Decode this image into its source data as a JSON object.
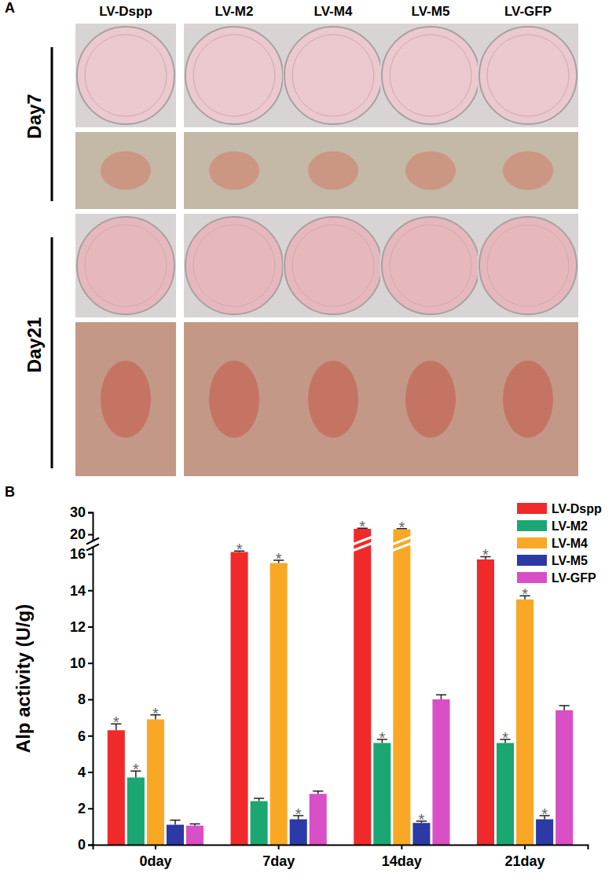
{
  "panel_a": {
    "label": "A",
    "columns": [
      "LV-Dspp",
      "LV-M2",
      "LV-M4",
      "LV-M5",
      "LV-GFP"
    ],
    "rows": [
      "Day7",
      "Day21"
    ]
  },
  "panel_b": {
    "label": "B"
  },
  "chart_data": {
    "type": "bar",
    "y_label": "Alp activity (U/g)",
    "categories": [
      "0day",
      "7day",
      "14day",
      "21day"
    ],
    "ylim": [
      0,
      30
    ],
    "yticks": [
      0,
      2,
      4,
      6,
      8,
      10,
      12,
      14,
      16,
      20,
      30
    ],
    "legend": "top-right",
    "series": [
      {
        "name": "LV-Dspp",
        "color": "#f02a2a",
        "values": [
          6.3,
          16.4,
          22.5,
          15.7
        ],
        "errors": [
          0.35,
          0.2,
          0.3,
          0.15
        ],
        "significance": [
          "*",
          "*",
          "*",
          "*"
        ]
      },
      {
        "name": "LV-M2",
        "color": "#1aa774",
        "values": [
          3.7,
          2.4,
          5.6,
          5.6
        ],
        "errors": [
          0.35,
          0.15,
          0.2,
          0.2
        ],
        "significance": [
          "*",
          null,
          "*",
          "*"
        ]
      },
      {
        "name": "LV-M4",
        "color": "#f9a825",
        "values": [
          6.9,
          15.5,
          22.3,
          13.5
        ],
        "errors": [
          0.25,
          0.15,
          0.3,
          0.2
        ],
        "significance": [
          "*",
          "*",
          "*",
          "*"
        ]
      },
      {
        "name": "LV-M5",
        "color": "#2b3aa6",
        "values": [
          1.1,
          1.4,
          1.2,
          1.4
        ],
        "errors": [
          0.25,
          0.2,
          0.1,
          0.2
        ],
        "significance": [
          null,
          "*",
          "*",
          "*"
        ]
      },
      {
        "name": "LV-GFP",
        "color": "#d94fc6",
        "values": [
          1.05,
          2.8,
          8.0,
          7.4
        ],
        "errors": [
          0.1,
          0.15,
          0.25,
          0.25
        ],
        "significance": [
          null,
          null,
          null,
          null
        ]
      }
    ]
  }
}
